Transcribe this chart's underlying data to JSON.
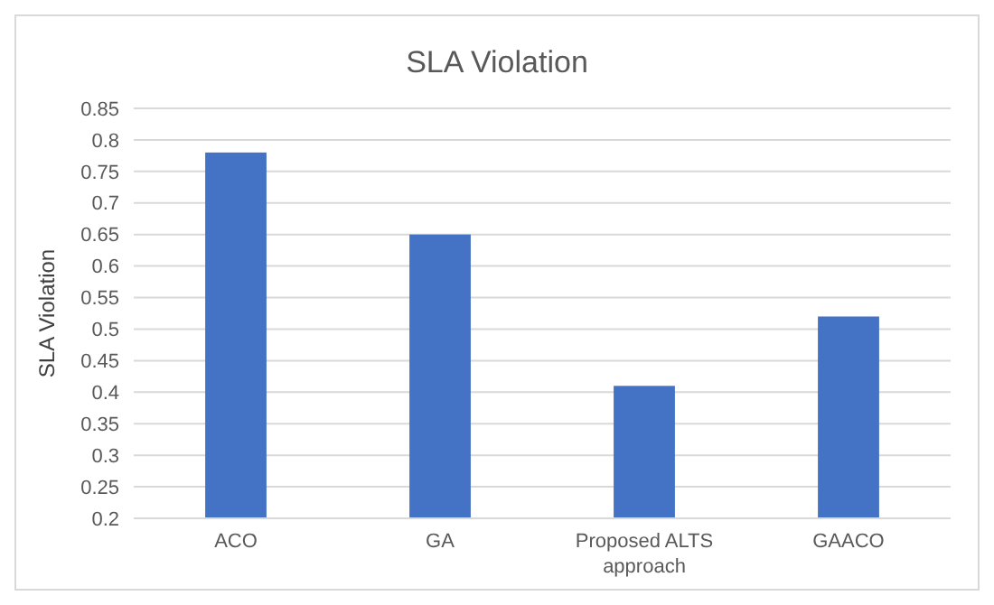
{
  "chart_data": {
    "type": "bar",
    "title": "SLA Violation",
    "ylabel": "SLA Violation",
    "categories": [
      "ACO",
      "GA",
      "Proposed ALTS approach",
      "GAACO"
    ],
    "values": [
      0.78,
      0.65,
      0.41,
      0.52
    ],
    "color": "#4472c4",
    "ylim": [
      0.2,
      0.85
    ],
    "yticks": [
      0.2,
      0.25,
      0.3,
      0.35,
      0.4,
      0.45,
      0.5,
      0.55,
      0.6,
      0.65,
      0.7,
      0.75,
      0.8,
      0.85
    ],
    "grid": "y"
  }
}
